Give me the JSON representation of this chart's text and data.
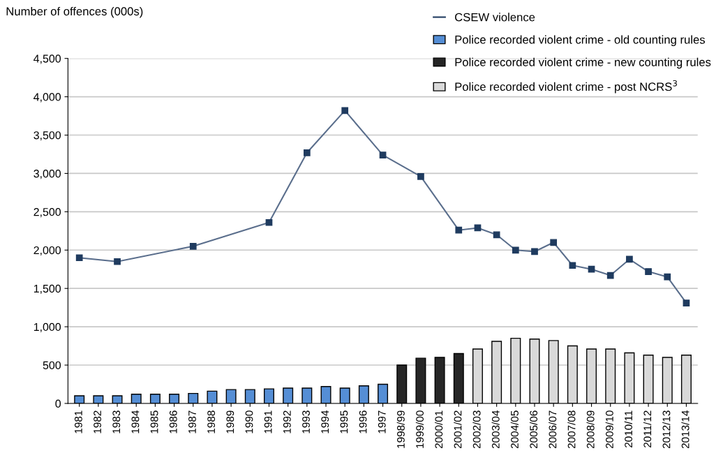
{
  "chart_data": {
    "type": "bar",
    "ylabel": "Number of offences (000s)",
    "categories": [
      "1981",
      "1982",
      "1983",
      "1984",
      "1985",
      "1986",
      "1987",
      "1988",
      "1989",
      "1990",
      "1991",
      "1992",
      "1993",
      "1994",
      "1995",
      "1996",
      "1997",
      "1998/99",
      "1999/00",
      "2000/01",
      "2001/02",
      "2002/03",
      "2003/04",
      "2004/05",
      "2005/06",
      "2006/07",
      "2007/08",
      "2008/09",
      "2009/10",
      "2010/11",
      "2011/12",
      "2012/13",
      "2013/14"
    ],
    "series": [
      {
        "name": "CSEW violence",
        "type": "line",
        "color": "#1f3b5f",
        "marker": "square",
        "values": [
          1900,
          null,
          1850,
          null,
          null,
          null,
          2050,
          null,
          null,
          null,
          2360,
          null,
          3270,
          null,
          3820,
          null,
          3240,
          null,
          2960,
          null,
          2260,
          2290,
          2200,
          2000,
          1980,
          2100,
          1800,
          1750,
          1670,
          1880,
          1720,
          1650,
          1310
        ]
      },
      {
        "name": "Police recorded violent crime - old counting rules",
        "color": "#558ed5",
        "values": [
          100,
          100,
          100,
          120,
          120,
          120,
          130,
          160,
          180,
          180,
          190,
          200,
          200,
          220,
          200,
          230,
          250,
          null,
          null,
          null,
          null,
          null,
          null,
          null,
          null,
          null,
          null,
          null,
          null,
          null,
          null,
          null,
          null
        ]
      },
      {
        "name": "Police recorded violent crime - new counting rules",
        "color": "#262626",
        "values": [
          null,
          null,
          null,
          null,
          null,
          null,
          null,
          null,
          null,
          null,
          null,
          null,
          null,
          null,
          null,
          null,
          null,
          500,
          590,
          600,
          650,
          null,
          null,
          null,
          null,
          null,
          null,
          null,
          null,
          null,
          null,
          null,
          null
        ]
      },
      {
        "name": "Police recorded violent crime - post NCRS$^{3}$",
        "color": "#d9d9d9",
        "values": [
          null,
          null,
          null,
          null,
          null,
          null,
          null,
          null,
          null,
          null,
          null,
          null,
          null,
          null,
          null,
          null,
          null,
          null,
          null,
          null,
          null,
          710,
          810,
          850,
          840,
          820,
          750,
          710,
          710,
          660,
          630,
          600,
          630
        ]
      }
    ],
    "ylim": [
      0,
      4500
    ],
    "yticks": [
      0,
      500,
      {
        "value": 1000,
        "label": "1,000"
      },
      {
        "value": 1500,
        "label": "1,500"
      },
      {
        "value": 2000,
        "label": "2,000"
      },
      {
        "value": 2500,
        "label": "2,500"
      },
      {
        "value": 3000,
        "label": "3,000"
      },
      {
        "value": 3500,
        "label": "3,500"
      },
      {
        "value": 4000,
        "label": "4,000"
      },
      {
        "value": 4500,
        "label": "4,500"
      }
    ],
    "grid": "y",
    "legend": "top right"
  }
}
